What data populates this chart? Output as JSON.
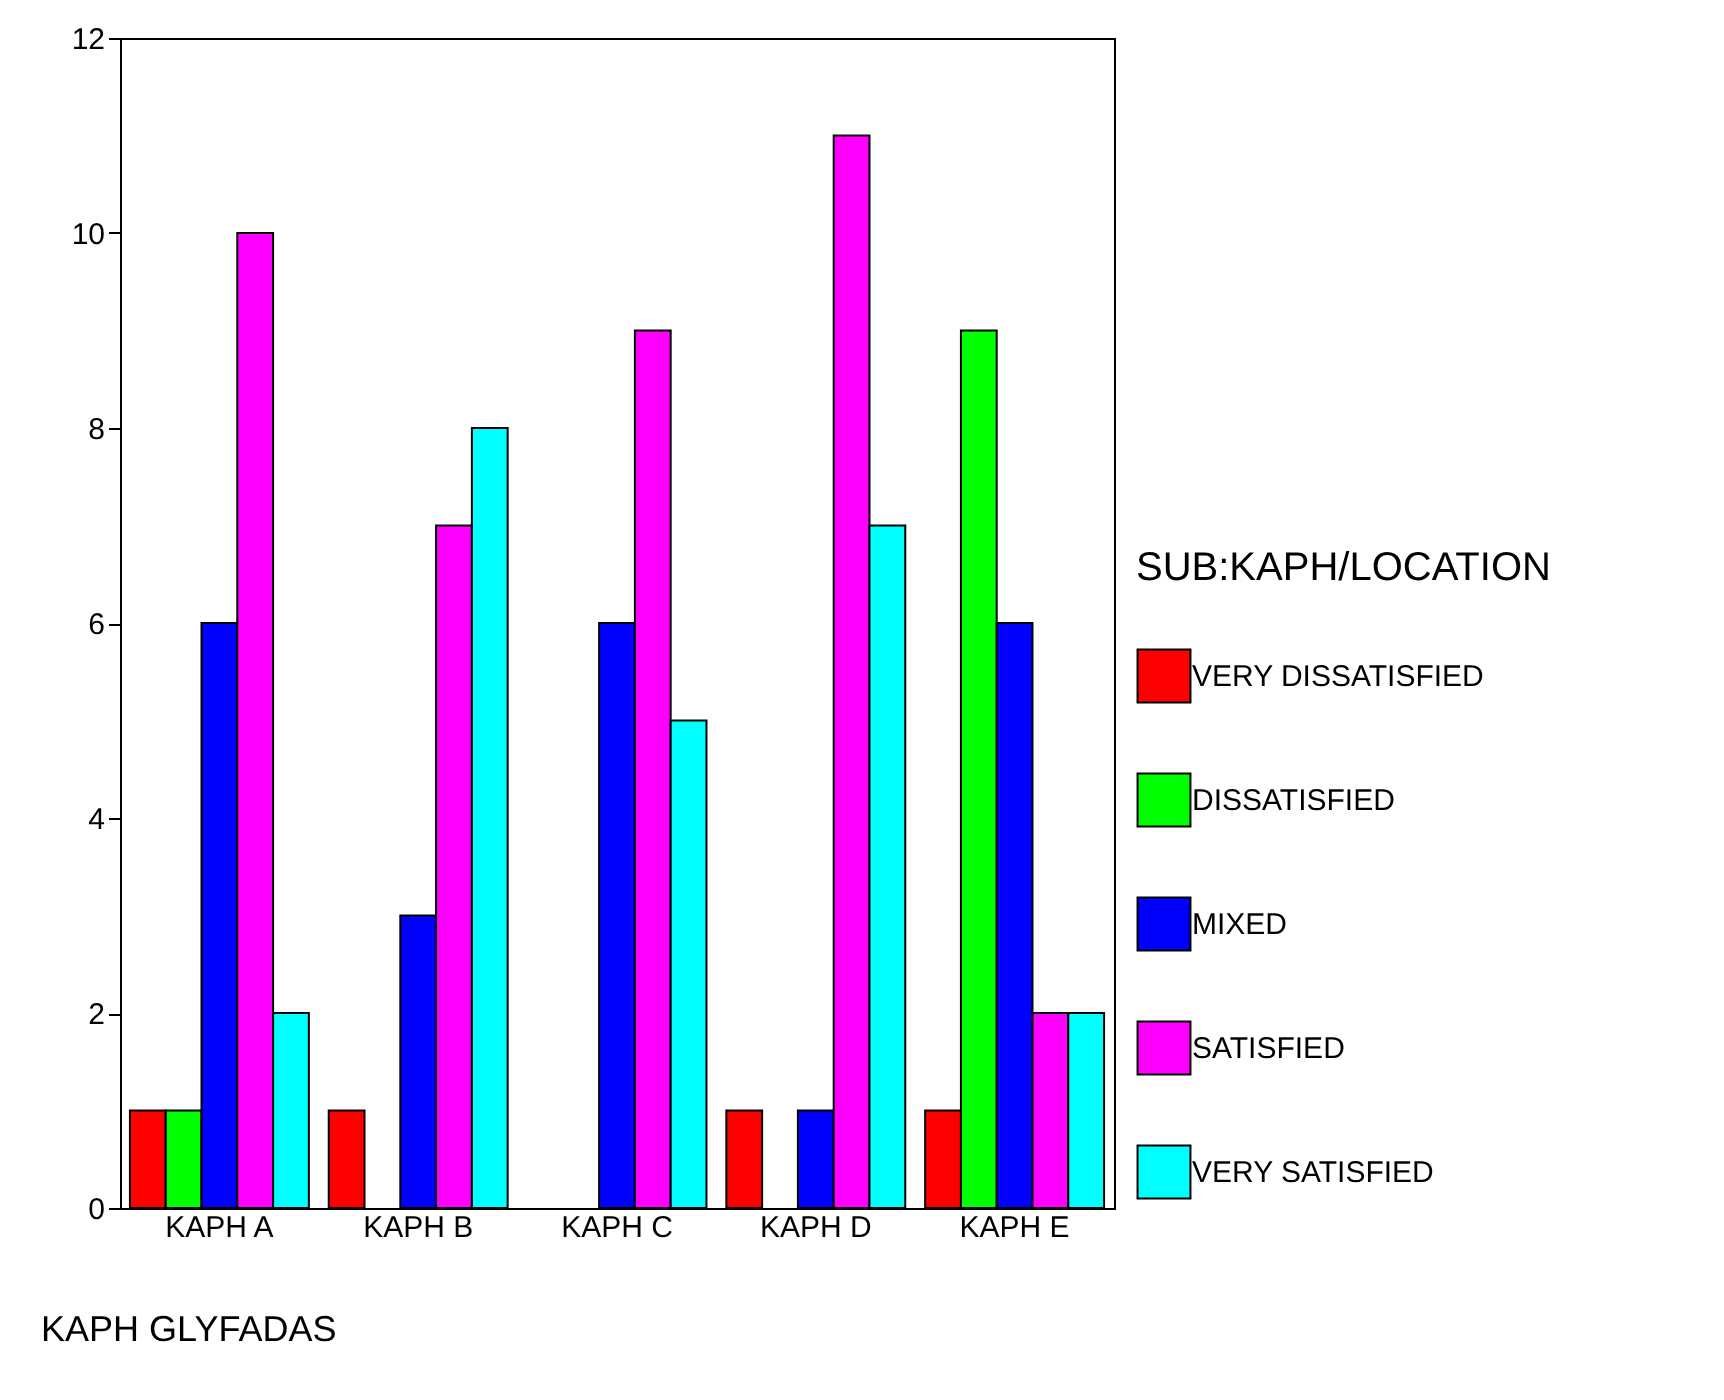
{
  "chart_data": {
    "type": "bar",
    "xlabel": "KAPH GLYFADAS",
    "legend_title": "SUB:KAPH/LOCATION",
    "legend": "right",
    "grid": false,
    "categories": [
      "KAPH A",
      "KAPH B",
      "KAPH C",
      "KAPH D",
      "KAPH E"
    ],
    "series": [
      {
        "name": "VERY DISSATISFIED",
        "color": "#ff0000",
        "values": [
          1,
          1,
          null,
          1,
          1
        ]
      },
      {
        "name": "DISSATISFIED",
        "color": "#00ff00",
        "values": [
          1,
          null,
          null,
          null,
          9
        ]
      },
      {
        "name": "MIXED",
        "color": "#0000ff",
        "values": [
          6,
          3,
          6,
          1,
          6
        ]
      },
      {
        "name": "SATISFIED",
        "color": "#ff00ff",
        "values": [
          10,
          7,
          9,
          11,
          2
        ]
      },
      {
        "name": "VERY SATISFIED",
        "color": "#00ffff",
        "values": [
          2,
          8,
          5,
          7,
          2
        ]
      }
    ],
    "ylim": [
      0,
      12
    ],
    "yticks": [
      0,
      2,
      4,
      6,
      8,
      10,
      12
    ]
  }
}
